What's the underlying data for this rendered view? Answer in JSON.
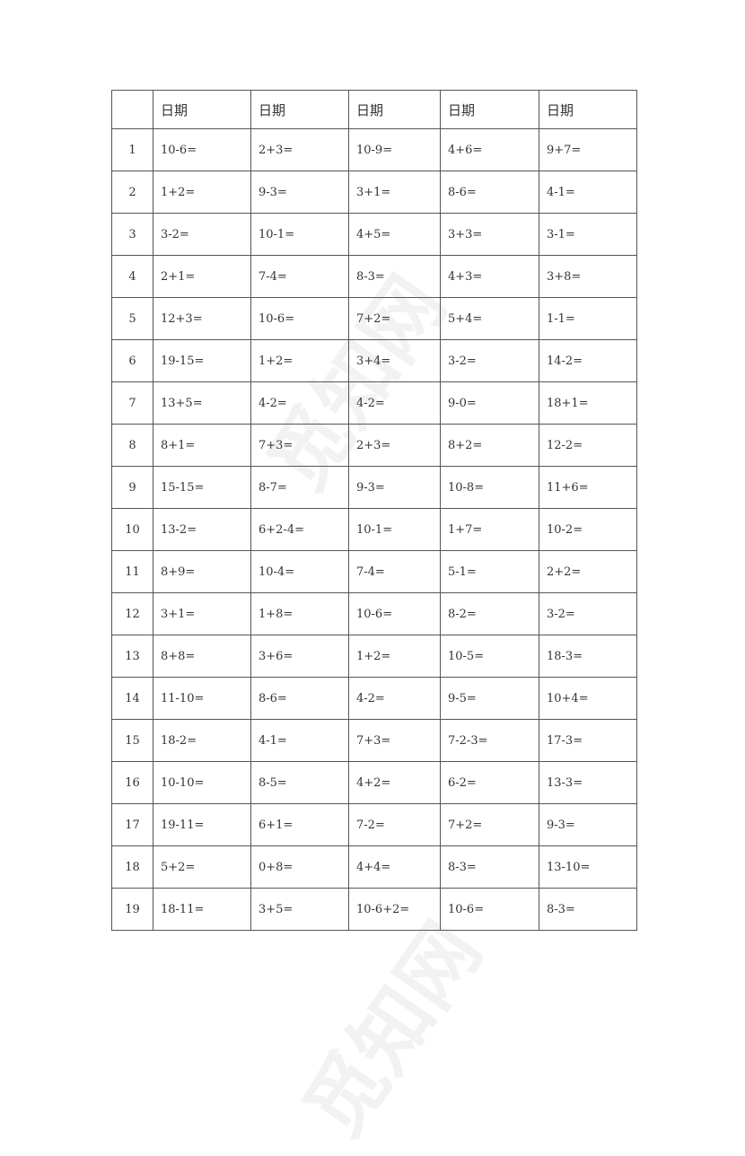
{
  "watermark": "觅知网",
  "table": {
    "headers": [
      "",
      "日期",
      "日期",
      "日期",
      "日期",
      "日期"
    ],
    "rows": [
      [
        "1",
        "10-6=",
        "2+3=",
        "10-9=",
        "4+6=",
        "9+7="
      ],
      [
        "2",
        "1+2=",
        "9-3=",
        "3+1=",
        "8-6=",
        "4-1="
      ],
      [
        "3",
        "3-2=",
        "10-1=",
        "4+5=",
        "3+3=",
        "3-1="
      ],
      [
        "4",
        "2+1=",
        "7-4=",
        "8-3=",
        "4+3=",
        "3+8="
      ],
      [
        "5",
        "12+3=",
        "10-6=",
        "7+2=",
        "5+4=",
        "1-1="
      ],
      [
        "6",
        "19-15=",
        "1+2=",
        "3+4=",
        "3-2=",
        "14-2="
      ],
      [
        "7",
        "13+5=",
        "4-2=",
        "4-2=",
        "9-0=",
        "18+1="
      ],
      [
        "8",
        "8+1=",
        "7+3=",
        "2+3=",
        "8+2=",
        "12-2="
      ],
      [
        "9",
        "15-15=",
        "8-7=",
        "9-3=",
        "10-8=",
        "11+6="
      ],
      [
        "10",
        "13-2=",
        "6+2-4=",
        "10-1=",
        "1+7=",
        "10-2="
      ],
      [
        "11",
        "8+9=",
        "10-4=",
        "7-4=",
        "5-1=",
        "2+2="
      ],
      [
        "12",
        "3+1=",
        "1+8=",
        "10-6=",
        "8-2=",
        "3-2="
      ],
      [
        "13",
        "8+8=",
        "3+6=",
        "1+2=",
        "10-5=",
        "18-3="
      ],
      [
        "14",
        "11-10=",
        "8-6=",
        "4-2=",
        "9-5=",
        "10+4="
      ],
      [
        "15",
        "18-2=",
        "4-1=",
        "7+3=",
        "7-2-3=",
        "17-3="
      ],
      [
        "16",
        "10-10=",
        "8-5=",
        "4+2=",
        "6-2=",
        "13-3="
      ],
      [
        "17",
        "19-11=",
        "6+1=",
        "7-2=",
        "7+2=",
        "9-3="
      ],
      [
        "18",
        "5+2=",
        "0+8=",
        "4+4=",
        "8-3=",
        "13-10="
      ],
      [
        "19",
        "18-11=",
        "3+5=",
        "10-6+2=",
        "10-6=",
        "8-3="
      ]
    ]
  }
}
